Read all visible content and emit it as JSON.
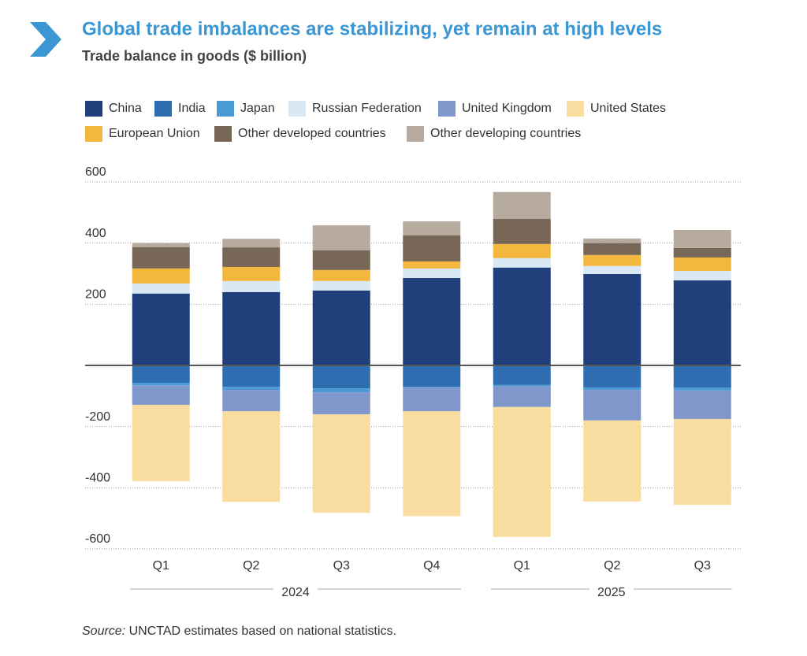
{
  "chart_data": {
    "type": "stacked_bar",
    "title": "Global trade imbalances are stabilizing, yet remain at high levels",
    "subtitle": "Trade balance in goods ($ billion)",
    "groups": [
      {
        "name": "2024",
        "categories": [
          "Q1",
          "Q2",
          "Q3",
          "Q4"
        ]
      },
      {
        "name": "2025",
        "categories": [
          "Q1",
          "Q2",
          "Q3"
        ]
      }
    ],
    "series": [
      {
        "name": "China",
        "color": "#213f7a",
        "values": [
          235,
          240,
          245,
          286,
          320,
          299,
          278
        ]
      },
      {
        "name": "India",
        "color": "#2e6db0",
        "values": [
          -57,
          -70,
          -75,
          -70,
          -64,
          -72,
          -72
        ]
      },
      {
        "name": "Japan",
        "color": "#4a9ad6",
        "values": [
          -8,
          -10,
          -13,
          -3,
          -5,
          -8,
          -10
        ]
      },
      {
        "name": "Russian Federation",
        "color": "#d9e8f5",
        "values": [
          33,
          36,
          31,
          31,
          31,
          26,
          31
        ]
      },
      {
        "name": "United Kingdom",
        "color": "#7f97cb",
        "values": [
          -64,
          -70,
          -72,
          -77,
          -67,
          -100,
          -93
        ]
      },
      {
        "name": "United States",
        "color": "#f8dca0",
        "values": [
          -250,
          -296,
          -322,
          -343,
          -425,
          -265,
          -281
        ]
      },
      {
        "name": "European Union",
        "color": "#f2b73c",
        "values": [
          49,
          46,
          36,
          23,
          46,
          36,
          44
        ]
      },
      {
        "name": "Other developed countries",
        "color": "#786657",
        "values": [
          70,
          64,
          64,
          85,
          82,
          39,
          31
        ]
      },
      {
        "name": "Other developing countries",
        "color": "#b7aba0",
        "values": [
          13,
          28,
          82,
          46,
          88,
          15,
          59
        ]
      }
    ],
    "ylim": [
      -600,
      600
    ],
    "yticks": [
      -600,
      -400,
      -200,
      200,
      400,
      600
    ],
    "grid": true,
    "source": {
      "label": "Source:",
      "text": "UNCTAD estimates based on national statistics."
    }
  }
}
